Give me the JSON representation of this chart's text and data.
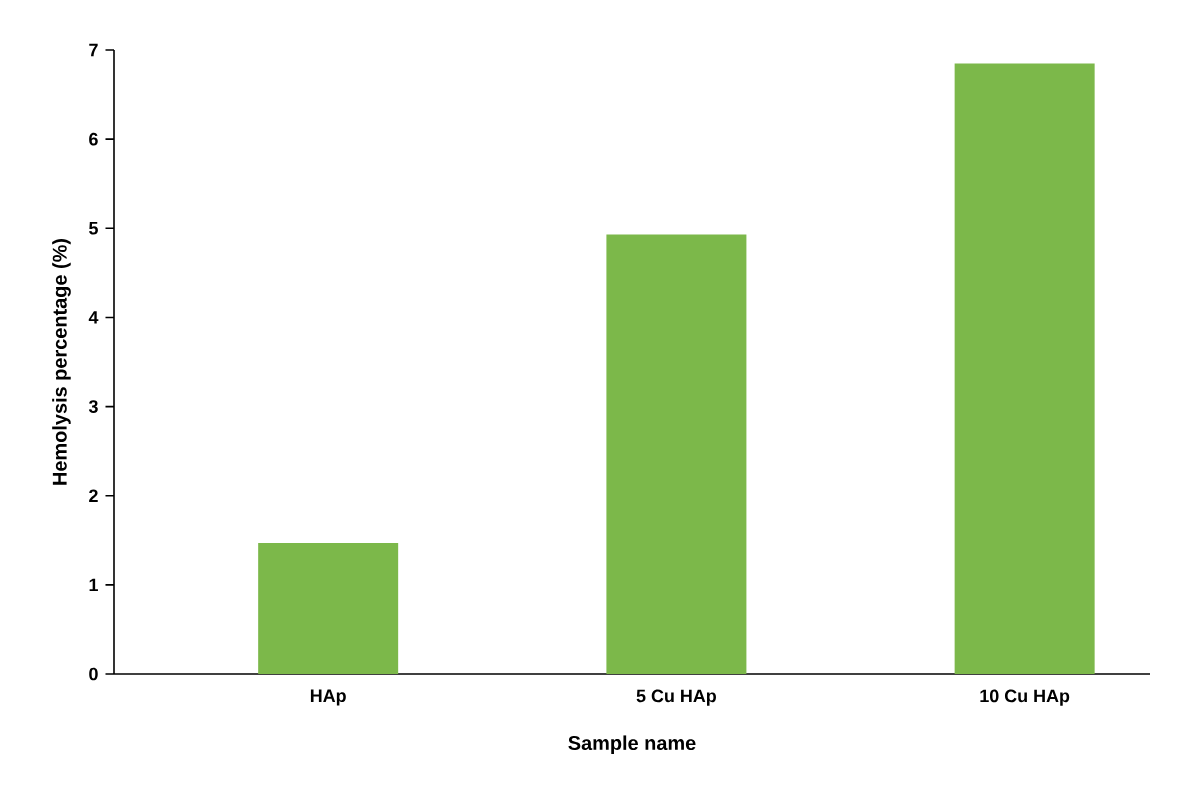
{
  "chart_data": {
    "type": "bar",
    "xlabel": "Sample name",
    "ylabel": "Hemolysis percentage (%)",
    "categories": [
      "HAp",
      "5 Cu HAp",
      "10 Cu HAp"
    ],
    "values": [
      1.47,
      4.93,
      6.85
    ],
    "color": "#7cb84a",
    "ylim": [
      0,
      7
    ],
    "yticks": [
      0,
      1,
      2,
      3,
      4,
      5,
      6,
      7
    ]
  }
}
